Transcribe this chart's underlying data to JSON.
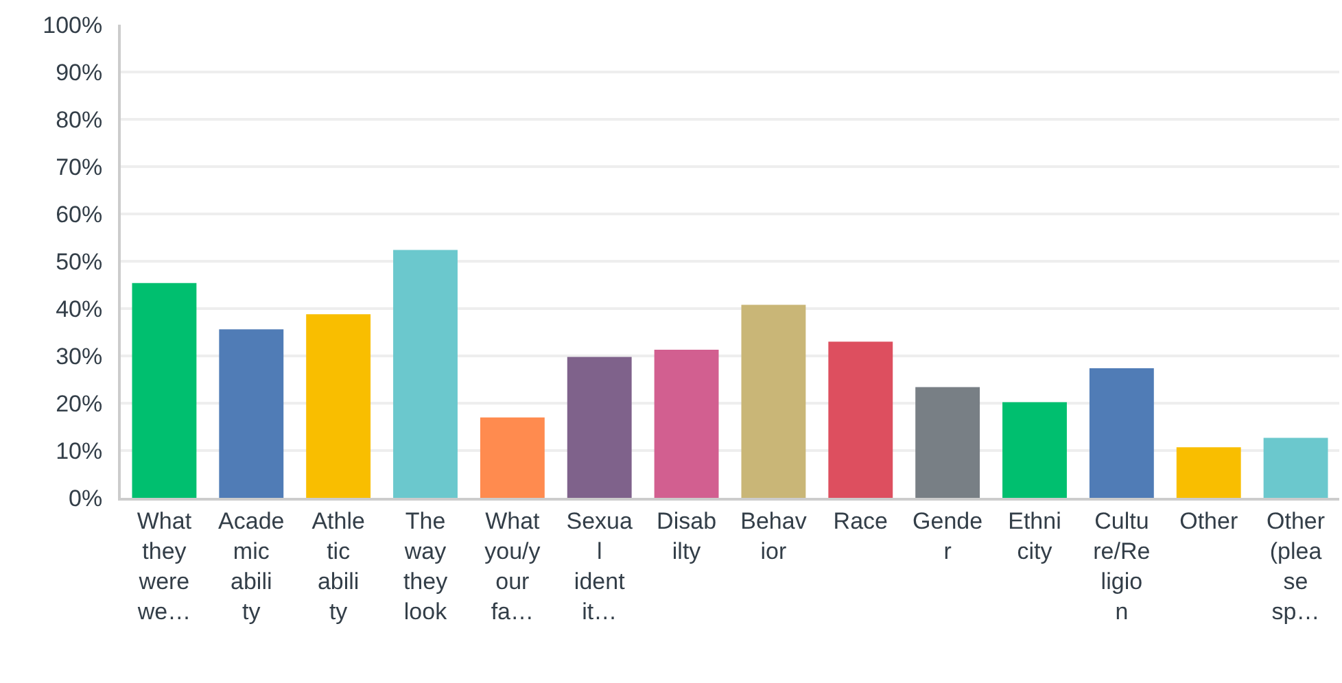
{
  "chart_data": {
    "type": "bar",
    "categories": [
      "What they were we…",
      "Academic ability",
      "Athletic ability",
      "The way they look",
      "What you/your fa…",
      "Sexual identit…",
      "Disabilty",
      "Behavior",
      "Race",
      "Gender",
      "Ethnicity",
      "Culture/Religion",
      "Other",
      "Other (please sp…"
    ],
    "values": [
      45.4,
      35.6,
      38.8,
      52.4,
      17.0,
      29.8,
      31.3,
      40.8,
      33.0,
      23.4,
      20.2,
      27.4,
      10.7,
      12.7
    ],
    "colors": [
      "#00bf6f",
      "#507cb6",
      "#f9be00",
      "#6bc8cd",
      "#ff8b4f",
      "#7f628b",
      "#d25f90",
      "#c9b677",
      "#dd4f5f",
      "#787f85",
      "#00bf6f",
      "#507cb6",
      "#f9be00",
      "#6bc8cd"
    ],
    "ylim": [
      0,
      100
    ],
    "yticks": [
      {
        "value": 0,
        "label": "0%"
      },
      {
        "value": 10,
        "label": "10%"
      },
      {
        "value": 20,
        "label": "20%"
      },
      {
        "value": 30,
        "label": "30%"
      },
      {
        "value": 40,
        "label": "40%"
      },
      {
        "value": 50,
        "label": "50%"
      },
      {
        "value": 60,
        "label": "60%"
      },
      {
        "value": 70,
        "label": "70%"
      },
      {
        "value": 80,
        "label": "80%"
      },
      {
        "value": 90,
        "label": "90%"
      },
      {
        "value": 100,
        "label": "100%"
      }
    ],
    "grid": "y"
  }
}
